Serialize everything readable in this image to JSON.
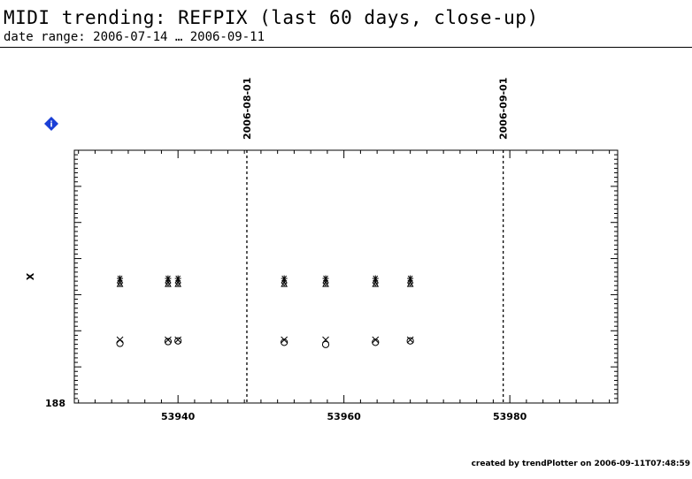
{
  "header": {
    "title": "MIDI trending: REFPIX (last 60 days, close-up)",
    "subtitle": "date range: 2006-07-14 … 2006-09-11"
  },
  "footer": {
    "credit": "created by trendPlotter on 2006-09-11T07:48:59"
  },
  "icons": {
    "info": "info-diamond-icon",
    "info_color": "#1a3fd6"
  },
  "chart_data": {
    "type": "scatter",
    "title": "",
    "xlabel": "",
    "ylabel": "X",
    "xlim": [
      53927.5,
      53993
    ],
    "ylim": [
      188,
      195
    ],
    "x_ticks": [
      53940,
      53960,
      53980
    ],
    "x_minor_step": 2,
    "y_tick_labels": [
      "188"
    ],
    "grid": false,
    "vertical_markers": [
      {
        "x": 53948.3,
        "label": "2006-08-01"
      },
      {
        "x": 53979.2,
        "label": "2006-09-01"
      }
    ],
    "series": [
      {
        "marker": "asterisk",
        "points": [
          [
            53933,
            191.45
          ],
          [
            53938.8,
            191.45
          ],
          [
            53940,
            191.45
          ],
          [
            53952.8,
            191.45
          ],
          [
            53957.8,
            191.45
          ],
          [
            53963.8,
            191.45
          ],
          [
            53968,
            191.45
          ]
        ]
      },
      {
        "marker": "plus",
        "points": [
          [
            53933,
            191.38
          ],
          [
            53938.8,
            191.38
          ],
          [
            53940,
            191.38
          ],
          [
            53952.8,
            191.38
          ],
          [
            53957.8,
            191.38
          ],
          [
            53963.8,
            191.38
          ],
          [
            53968,
            191.38
          ]
        ]
      },
      {
        "marker": "diamond",
        "points": [
          [
            53933,
            191.33
          ],
          [
            53938.8,
            191.33
          ],
          [
            53940,
            191.33
          ],
          [
            53952.8,
            191.33
          ],
          [
            53957.8,
            191.33
          ],
          [
            53963.8,
            191.33
          ],
          [
            53968,
            191.33
          ]
        ]
      },
      {
        "marker": "triangle",
        "points": [
          [
            53933,
            191.29
          ],
          [
            53938.8,
            191.29
          ],
          [
            53940,
            191.29
          ],
          [
            53952.8,
            191.29
          ],
          [
            53957.8,
            191.29
          ],
          [
            53963.8,
            191.29
          ],
          [
            53968,
            191.29
          ]
        ]
      },
      {
        "marker": "x",
        "points": [
          [
            53933,
            189.75
          ],
          [
            53938.8,
            189.75
          ],
          [
            53940,
            189.75
          ],
          [
            53952.8,
            189.75
          ],
          [
            53957.8,
            189.75
          ],
          [
            53963.8,
            189.75
          ],
          [
            53968,
            189.75
          ]
        ]
      },
      {
        "marker": "circle",
        "points": [
          [
            53933,
            189.65
          ],
          [
            53938.8,
            189.7
          ],
          [
            53940,
            189.72
          ],
          [
            53952.8,
            189.68
          ],
          [
            53957.8,
            189.62
          ],
          [
            53963.8,
            189.68
          ],
          [
            53968,
            189.72
          ]
        ]
      }
    ]
  }
}
